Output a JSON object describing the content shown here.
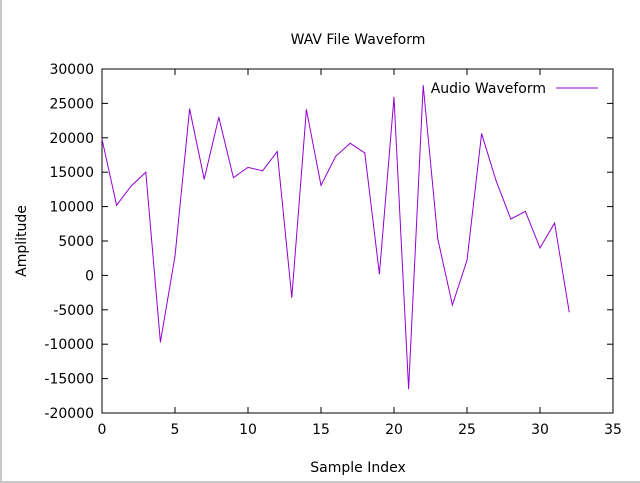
{
  "chart_data": {
    "type": "line",
    "title": "WAV File Waveform",
    "xlabel": "Sample Index",
    "ylabel": "Amplitude",
    "xlim": [
      0,
      35
    ],
    "ylim": [
      -20000,
      30000
    ],
    "xticks": [
      0,
      5,
      10,
      15,
      20,
      25,
      30,
      35
    ],
    "yticks": [
      -20000,
      -15000,
      -10000,
      -5000,
      0,
      5000,
      10000,
      15000,
      20000,
      25000,
      30000
    ],
    "legend_position": "top-right",
    "grid": false,
    "series": [
      {
        "name": "Audio Waveform",
        "color": "#9400d3",
        "x": [
          0,
          1,
          2,
          3,
          4,
          5,
          6,
          7,
          8,
          9,
          10,
          11,
          12,
          13,
          14,
          15,
          16,
          17,
          18,
          19,
          20,
          21,
          22,
          23,
          24,
          25,
          26,
          27,
          28,
          29,
          30,
          31,
          32
        ],
        "values": [
          19800,
          10200,
          13000,
          15000,
          -9700,
          2800,
          24200,
          14000,
          23000,
          14200,
          15700,
          15200,
          18000,
          -3200,
          24100,
          13100,
          17300,
          19200,
          17800,
          200,
          25900,
          -16500,
          27600,
          5300,
          -4300,
          2200,
          20600,
          13700,
          8200,
          9300,
          4000,
          7600,
          -5300
        ]
      }
    ]
  }
}
